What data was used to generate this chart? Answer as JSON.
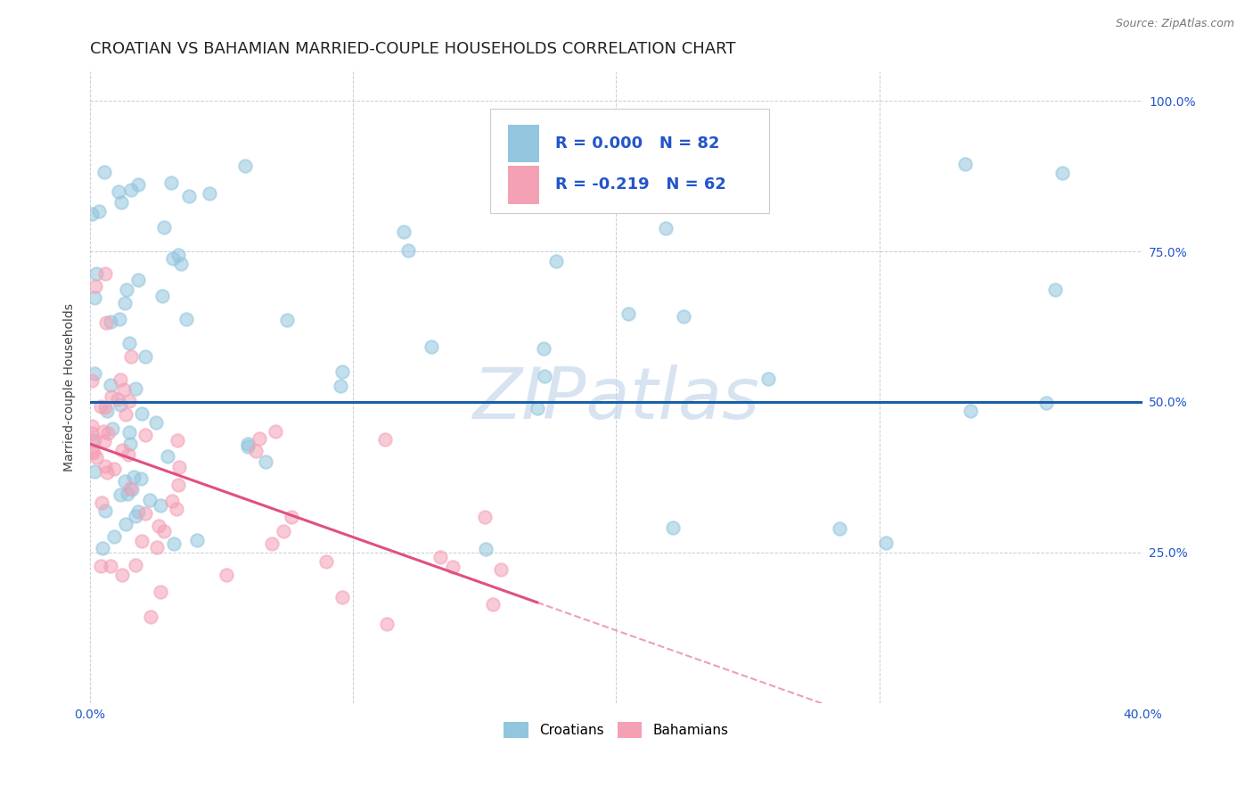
{
  "title": "CROATIAN VS BAHAMIAN MARRIED-COUPLE HOUSEHOLDS CORRELATION CHART",
  "source": "Source: ZipAtlas.com",
  "ylabel": "Married-couple Households",
  "watermark": "ZIPatlas",
  "croatian_R": 0.0,
  "croatian_N": 82,
  "bahamian_R": -0.219,
  "bahamian_N": 62,
  "xlim": [
    0.0,
    0.4
  ],
  "ylim": [
    0.0,
    1.05
  ],
  "ytick_positions": [
    0.25,
    0.5,
    0.75,
    1.0
  ],
  "ytick_labels": [
    "25.0%",
    "50.0%",
    "75.0%",
    "100.0%"
  ],
  "xtick_positions": [
    0.0,
    0.1,
    0.2,
    0.3,
    0.4
  ],
  "xtick_labels": [
    "0.0%",
    "",
    "",
    "",
    "40.0%"
  ],
  "blue_scatter_color": "#92c5de",
  "pink_scatter_color": "#f4a0b5",
  "blue_line_color": "#1a5fa8",
  "pink_line_color": "#e05080",
  "title_fontsize": 13,
  "axis_label_fontsize": 10,
  "tick_label_fontsize": 10,
  "legend_fontsize": 13,
  "source_fontsize": 9,
  "legend_text_color": "#2255cc",
  "axis_tick_color": "#2255cc",
  "background_color": "#ffffff",
  "grid_color": "#c0c8d8",
  "watermark_color": "#c8d8ec",
  "bahamian_data_xlim": 0.17,
  "line_solid_xlim": 0.17,
  "croatian_line_y": 0.5
}
